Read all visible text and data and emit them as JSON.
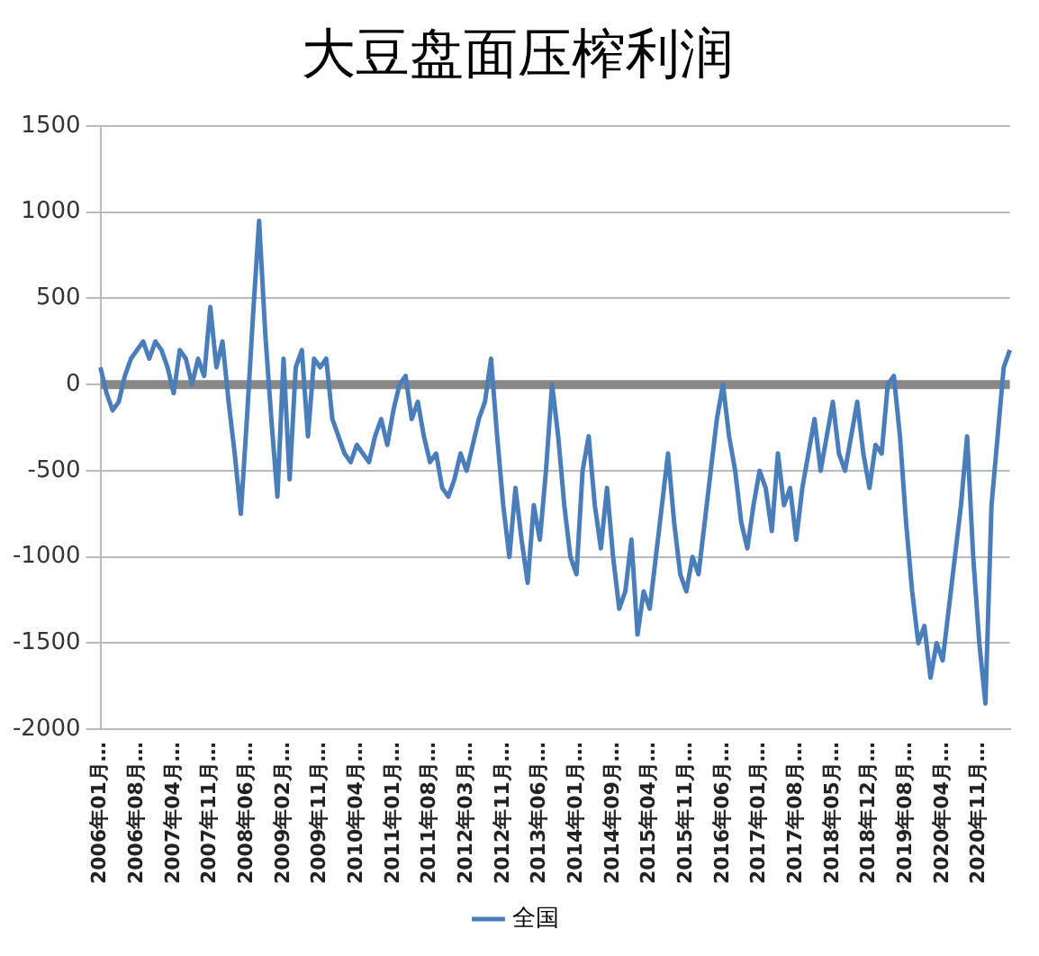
{
  "chart_data": {
    "type": "line",
    "title": "大豆盘面压榨利润",
    "categories": [
      "2006年01月…",
      null,
      null,
      null,
      null,
      null,
      "2006年08月…",
      null,
      null,
      null,
      null,
      null,
      "2007年04月…",
      null,
      null,
      null,
      null,
      null,
      "2007年11月…",
      null,
      null,
      null,
      null,
      null,
      "2008年06月…",
      null,
      null,
      null,
      null,
      null,
      "2009年02月…",
      null,
      null,
      null,
      null,
      null,
      "2009年11月…",
      null,
      null,
      null,
      null,
      null,
      "2010年04月…",
      null,
      null,
      null,
      null,
      null,
      "2011年01月…",
      null,
      null,
      null,
      null,
      null,
      "2011年08月…",
      null,
      null,
      null,
      null,
      null,
      "2012年03月…",
      null,
      null,
      null,
      null,
      null,
      "2012年11月…",
      null,
      null,
      null,
      null,
      null,
      "2013年06月…",
      null,
      null,
      null,
      null,
      null,
      "2014年01月…",
      null,
      null,
      null,
      null,
      null,
      "2014年09月…",
      null,
      null,
      null,
      null,
      null,
      "2015年04月…",
      null,
      null,
      null,
      null,
      null,
      "2015年11月…",
      null,
      null,
      null,
      null,
      null,
      "2016年06月…",
      null,
      null,
      null,
      null,
      null,
      "2017年01月…",
      null,
      null,
      null,
      null,
      null,
      "2017年08月…",
      null,
      null,
      null,
      null,
      null,
      "2018年05月…",
      null,
      null,
      null,
      null,
      null,
      "2018年12月…",
      null,
      null,
      null,
      null,
      null,
      "2019年08月…",
      null,
      null,
      null,
      null,
      null,
      "2020年04月…",
      null,
      null,
      null,
      null,
      null,
      "2020年11月…",
      null,
      null,
      null,
      null,
      null
    ],
    "series": [
      {
        "name": "全国",
        "color": "#4a7ebb",
        "values": [
          100,
          -50,
          -150,
          -100,
          50,
          150,
          200,
          250,
          150,
          250,
          200,
          100,
          -50,
          200,
          150,
          0,
          150,
          50,
          450,
          100,
          250,
          -100,
          -400,
          -750,
          -200,
          400,
          950,
          300,
          -200,
          -650,
          150,
          -550,
          100,
          200,
          -300,
          150,
          100,
          150,
          -200,
          -300,
          -400,
          -450,
          -350,
          -400,
          -450,
          -300,
          -200,
          -350,
          -150,
          0,
          50,
          -200,
          -100,
          -300,
          -450,
          -400,
          -600,
          -650,
          -550,
          -400,
          -500,
          -350,
          -200,
          -100,
          150,
          -300,
          -700,
          -1000,
          -600,
          -900,
          -1150,
          -700,
          -900,
          -500,
          0,
          -300,
          -700,
          -1000,
          -1100,
          -500,
          -300,
          -700,
          -950,
          -600,
          -1000,
          -1300,
          -1200,
          -900,
          -1450,
          -1200,
          -1300,
          -1000,
          -700,
          -400,
          -800,
          -1100,
          -1200,
          -1000,
          -1100,
          -800,
          -500,
          -200,
          0,
          -300,
          -500,
          -800,
          -950,
          -700,
          -500,
          -600,
          -850,
          -400,
          -700,
          -600,
          -900,
          -600,
          -400,
          -200,
          -500,
          -300,
          -100,
          -400,
          -500,
          -300,
          -100,
          -400,
          -600,
          -350,
          -400,
          0,
          50,
          -300,
          -800,
          -1200,
          -1500,
          -1400,
          -1700,
          -1500,
          -1600,
          -1300,
          -1000,
          -700,
          -300,
          -1000,
          -1500,
          -1850,
          -700,
          -300,
          100,
          200
        ]
      }
    ],
    "ylim": [
      -2000,
      1500
    ],
    "yticks": [
      -2000,
      -1500,
      -1000,
      -500,
      0,
      500,
      1000,
      1500
    ],
    "ref_lines": [
      {
        "axis": "y",
        "value": 0,
        "color": "#888888"
      }
    ],
    "grid": "y",
    "legend": "bottom",
    "marker": "none",
    "line_style": "solid"
  }
}
